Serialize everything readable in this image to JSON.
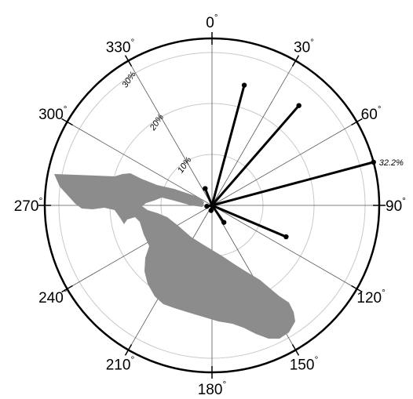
{
  "chart_data": {
    "type": "polar-rose",
    "angle_unit": "°",
    "angle_ticks": [
      "0",
      "30",
      "60",
      "90",
      "120",
      "150",
      "180",
      "210",
      "240",
      "270",
      "300",
      "330"
    ],
    "radial_ticks": [
      "10%",
      "20%",
      "30%"
    ],
    "radial_max": 32.2,
    "spokes": [
      {
        "angle": 15,
        "value": 24
      },
      {
        "angle": 41,
        "value": 25.5
      },
      {
        "angle": 75,
        "value": 32.2,
        "label": "32.2%"
      },
      {
        "angle": 113,
        "value": 15.5
      },
      {
        "angle": 145,
        "value": 4
      },
      {
        "angle": 190,
        "value": 1
      },
      {
        "angle": 260,
        "value": 1
      },
      {
        "angle": 338,
        "value": 3.5
      }
    ],
    "landmass_color": "#8c8c8c",
    "spoke_color": "#000000",
    "grid": true
  }
}
